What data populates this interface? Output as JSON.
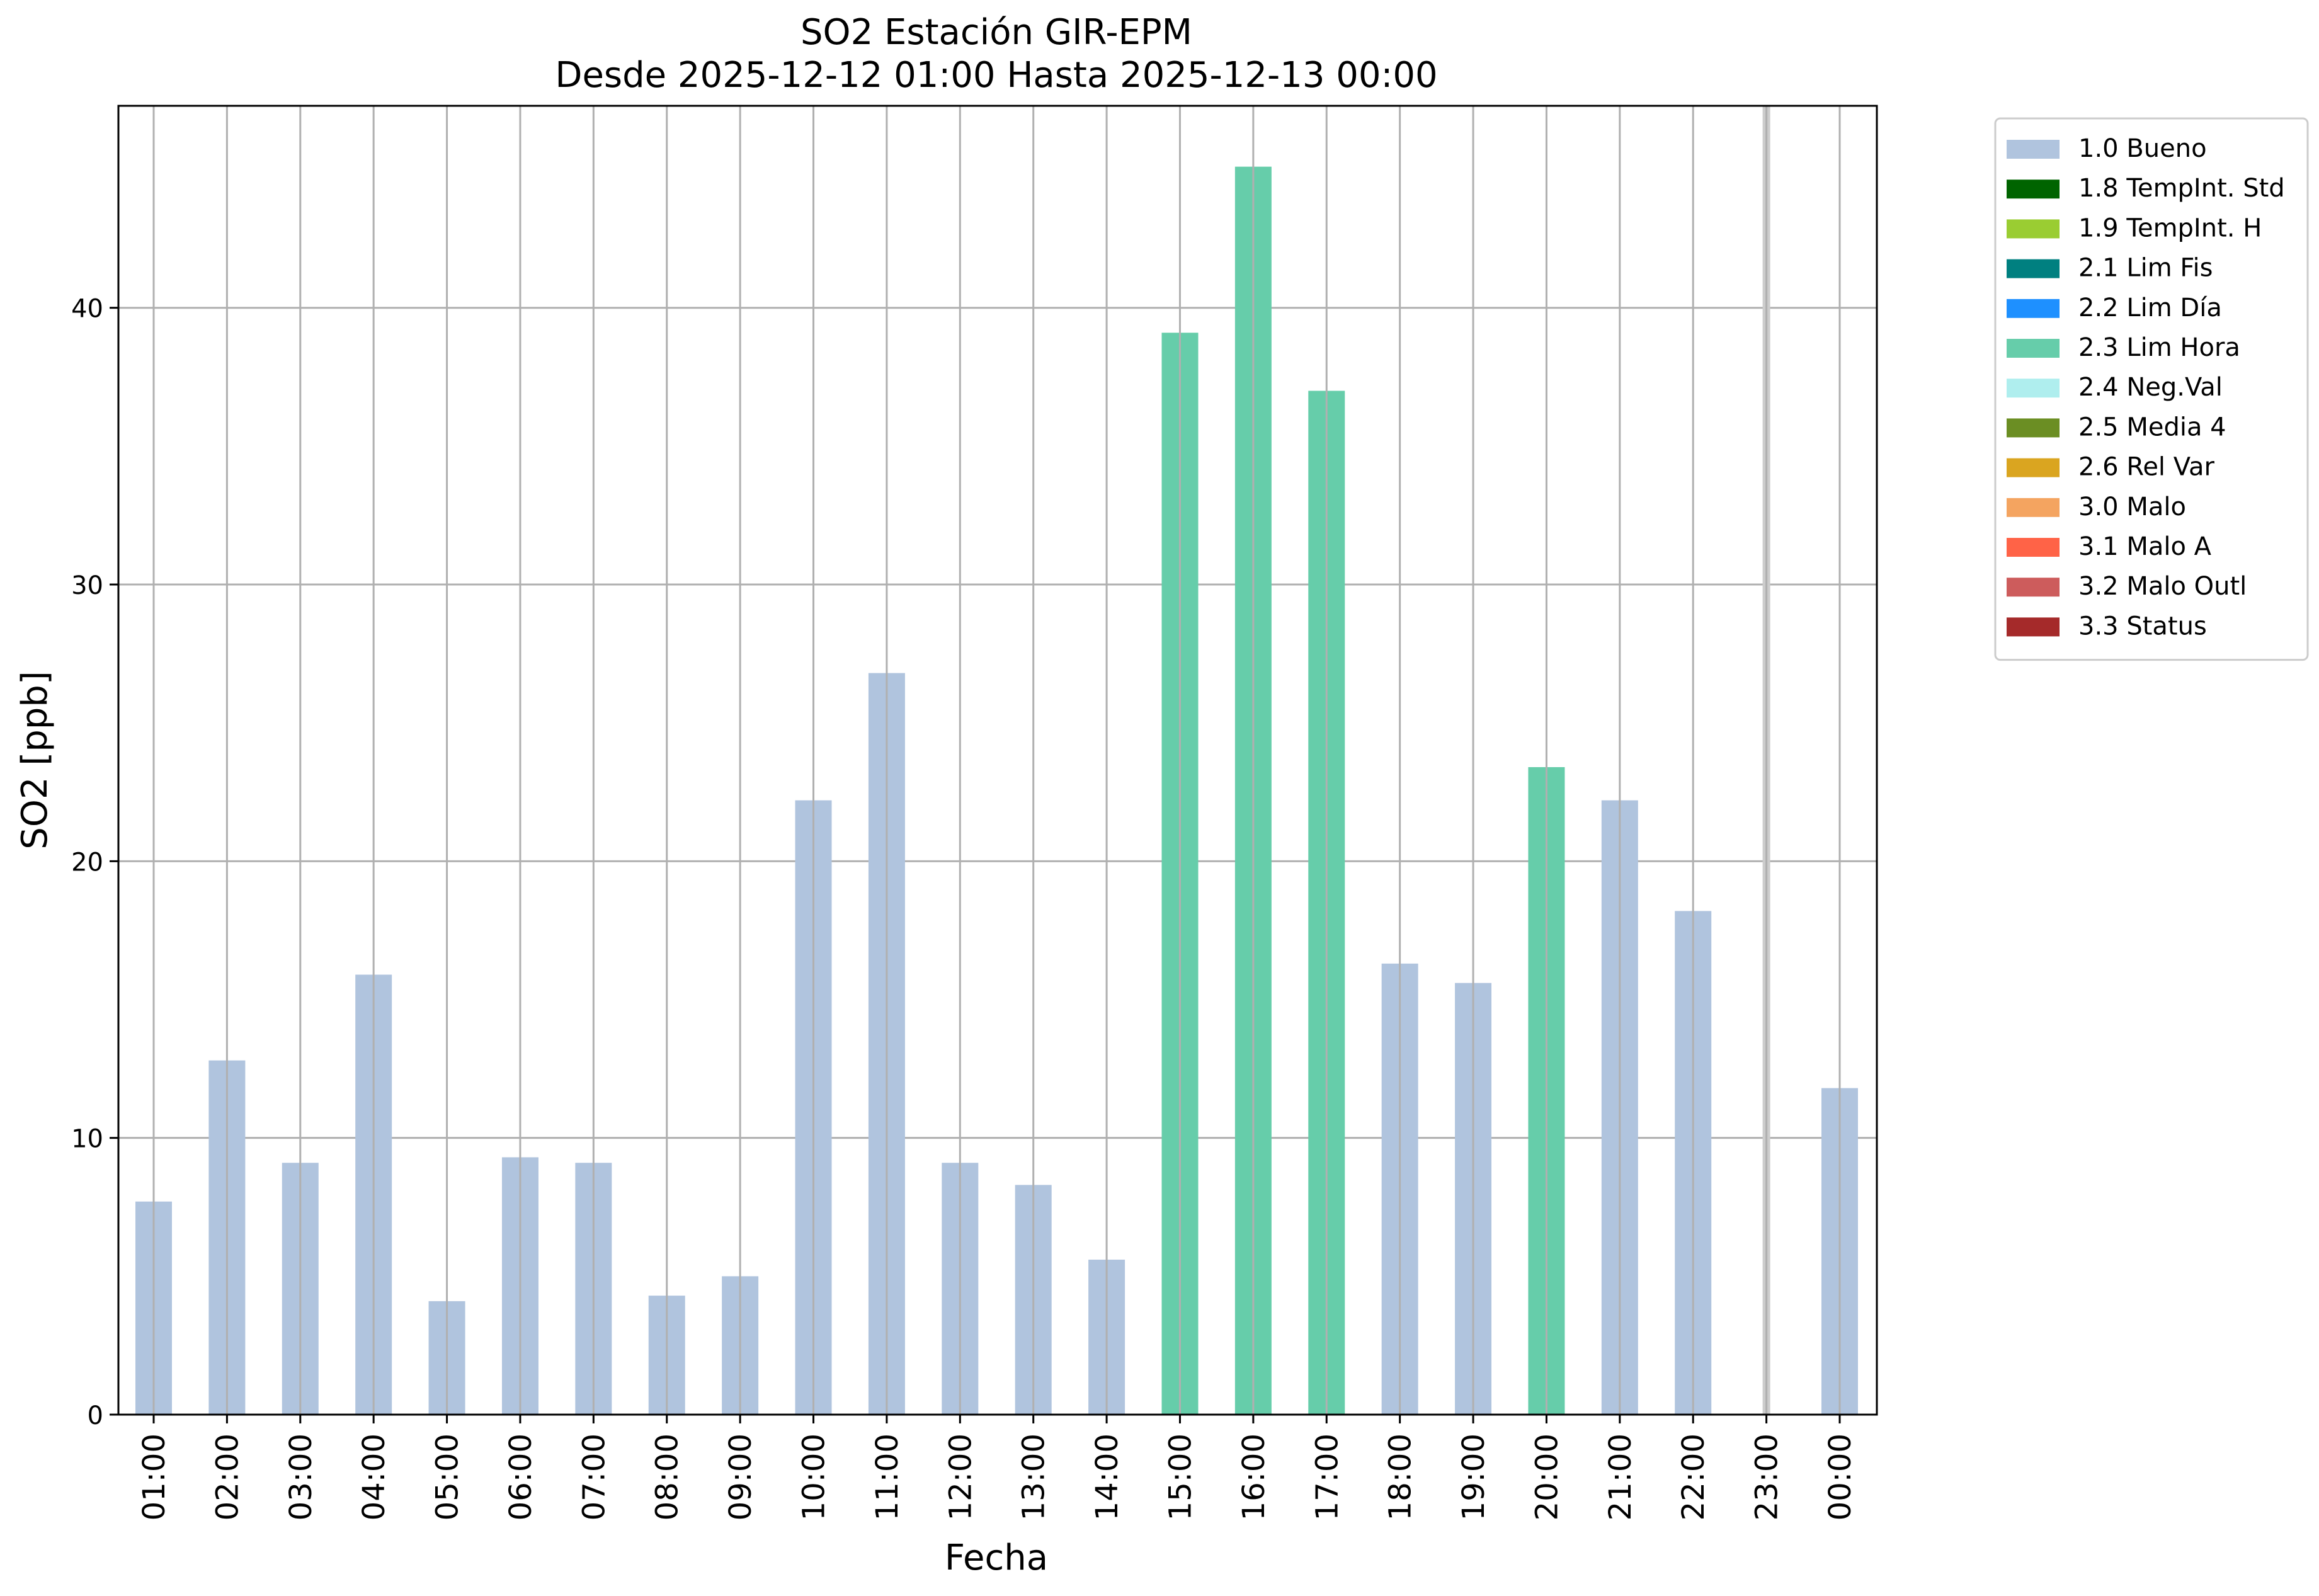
{
  "chart_data": {
    "type": "bar",
    "title": "SO2 Estación GIR-EPM",
    "subtitle": "Desde 2025-12-12 01:00 Hasta 2025-12-13 00:00",
    "xlabel": "Fecha",
    "ylabel": "SO2 [ppb]",
    "ylim": [
      0,
      47.3
    ],
    "yticks": [
      0,
      10,
      20,
      30,
      40
    ],
    "grid": true,
    "legend_position": "outside-top-right",
    "categories": [
      "01:00",
      "02:00",
      "03:00",
      "04:00",
      "05:00",
      "06:00",
      "07:00",
      "08:00",
      "09:00",
      "10:00",
      "11:00",
      "12:00",
      "13:00",
      "14:00",
      "15:00",
      "16:00",
      "17:00",
      "18:00",
      "19:00",
      "20:00",
      "21:00",
      "22:00",
      "23:00",
      "00:00"
    ],
    "values": [
      7.7,
      12.8,
      9.1,
      15.9,
      4.1,
      9.3,
      9.1,
      4.3,
      5.0,
      22.2,
      26.8,
      9.1,
      8.3,
      5.6,
      39.1,
      45.1,
      37.0,
      16.3,
      15.6,
      23.4,
      22.2,
      18.2,
      null,
      11.8
    ],
    "flags": [
      "1.0 Bueno",
      "1.0 Bueno",
      "1.0 Bueno",
      "1.0 Bueno",
      "1.0 Bueno",
      "1.0 Bueno",
      "1.0 Bueno",
      "1.0 Bueno",
      "1.0 Bueno",
      "1.0 Bueno",
      "1.0 Bueno",
      "1.0 Bueno",
      "1.0 Bueno",
      "1.0 Bueno",
      "2.3 Lim Hora",
      "2.3 Lim Hora",
      "2.3 Lim Hora",
      "1.0 Bueno",
      "1.0 Bueno",
      "2.3 Lim Hora",
      "1.0 Bueno",
      "1.0 Bueno",
      null,
      "1.0 Bueno"
    ],
    "missing_marker_color": "#cccccc",
    "legend": [
      {
        "label": "1.0 Bueno",
        "color": "#b0c4de"
      },
      {
        "label": "1.8 TempInt. Std",
        "color": "#006400"
      },
      {
        "label": "1.9 TempInt. H",
        "color": "#9acd32"
      },
      {
        "label": "2.1 Lim Fis",
        "color": "#008080"
      },
      {
        "label": "2.2 Lim Día",
        "color": "#1e90ff"
      },
      {
        "label": "2.3 Lim Hora",
        "color": "#66cdaa"
      },
      {
        "label": "2.4 Neg.Val",
        "color": "#afeeee"
      },
      {
        "label": "2.5 Media 4",
        "color": "#6b8e23"
      },
      {
        "label": "2.6 Rel Var",
        "color": "#daa520"
      },
      {
        "label": "3.0 Malo",
        "color": "#f4a460"
      },
      {
        "label": "3.1 Malo A",
        "color": "#ff6347"
      },
      {
        "label": "3.2 Malo Outl",
        "color": "#cd5c5c"
      },
      {
        "label": "3.3 Status",
        "color": "#a52a2a"
      }
    ]
  }
}
